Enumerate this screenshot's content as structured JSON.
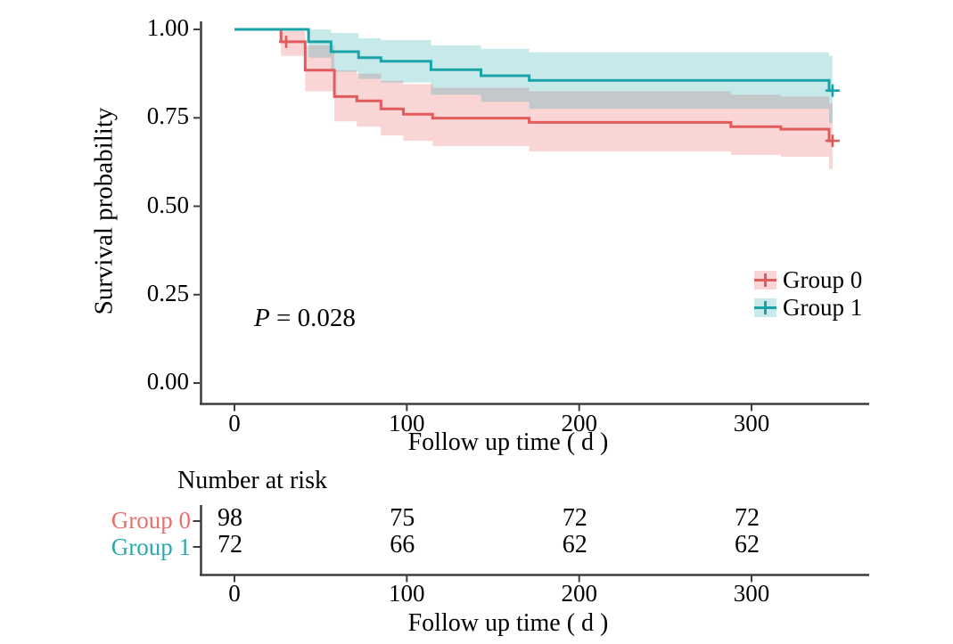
{
  "chart_data": {
    "type": "line",
    "subtype": "kaplan-meier-step-with-confidence-bands",
    "title": "",
    "xlabel": "Follow up time ( d )",
    "ylabel": "Survival probability",
    "xticks": [
      0,
      100,
      200,
      300
    ],
    "yticks": [
      0.0,
      0.25,
      0.5,
      0.75,
      1.0
    ],
    "xlim": [
      -20,
      368
    ],
    "ylim": [
      0,
      1.02
    ],
    "grid": false,
    "legend_position": "right-middle",
    "pvalue": {
      "symbol": "P",
      "rest": " = 0.028"
    },
    "axis_color": "#3d3d3d",
    "series": [
      {
        "name": "Group 0",
        "color": "#e15b5d",
        "label_color": "#e8706d",
        "ci_fill": "rgba(231,93,95,0.26)",
        "steps": [
          [
            0,
            1.0
          ],
          [
            27,
            0.965
          ],
          [
            41,
            0.885
          ],
          [
            58,
            0.81
          ],
          [
            71,
            0.798
          ],
          [
            85,
            0.775
          ],
          [
            98,
            0.76
          ],
          [
            115,
            0.749
          ],
          [
            171,
            0.737
          ],
          [
            288,
            0.725
          ],
          [
            317,
            0.718
          ],
          [
            345,
            0.685
          ]
        ],
        "end_time": 347,
        "censors": [
          [
            30,
            0.965
          ],
          [
            347,
            0.685
          ]
        ],
        "ci": [
          [
            27,
            0.925,
            0.995
          ],
          [
            41,
            0.825,
            0.955
          ],
          [
            58,
            0.74,
            0.885
          ],
          [
            71,
            0.725,
            0.875
          ],
          [
            85,
            0.7,
            0.855
          ],
          [
            98,
            0.685,
            0.845
          ],
          [
            115,
            0.67,
            0.835
          ],
          [
            171,
            0.655,
            0.825
          ],
          [
            288,
            0.645,
            0.815
          ],
          [
            317,
            0.64,
            0.81
          ],
          [
            345,
            0.605,
            0.79
          ]
        ]
      },
      {
        "name": "Group 1",
        "color": "#18a3a8",
        "label_color": "#2ba7ad",
        "ci_fill": "rgba(24,163,168,0.24)",
        "steps": [
          [
            0,
            1.0
          ],
          [
            43,
            0.965
          ],
          [
            56,
            0.937
          ],
          [
            72,
            0.92
          ],
          [
            85,
            0.91
          ],
          [
            114,
            0.886
          ],
          [
            143,
            0.869
          ],
          [
            171,
            0.856
          ],
          [
            345,
            0.827
          ]
        ],
        "end_time": 347,
        "censors": [
          [
            347,
            0.827
          ]
        ],
        "ci": [
          [
            43,
            0.92,
            1.0
          ],
          [
            56,
            0.88,
            0.99
          ],
          [
            72,
            0.86,
            0.975
          ],
          [
            85,
            0.85,
            0.97
          ],
          [
            114,
            0.815,
            0.955
          ],
          [
            143,
            0.795,
            0.945
          ],
          [
            171,
            0.775,
            0.935
          ],
          [
            345,
            0.735,
            0.925
          ]
        ]
      }
    ],
    "risk_table": {
      "title": "Number at risk",
      "times": [
        0,
        100,
        200,
        300
      ],
      "rows": [
        {
          "name": "Group 0",
          "values": [
            98,
            75,
            72,
            72
          ]
        },
        {
          "name": "Group 1",
          "values": [
            72,
            66,
            62,
            62
          ]
        }
      ]
    }
  }
}
